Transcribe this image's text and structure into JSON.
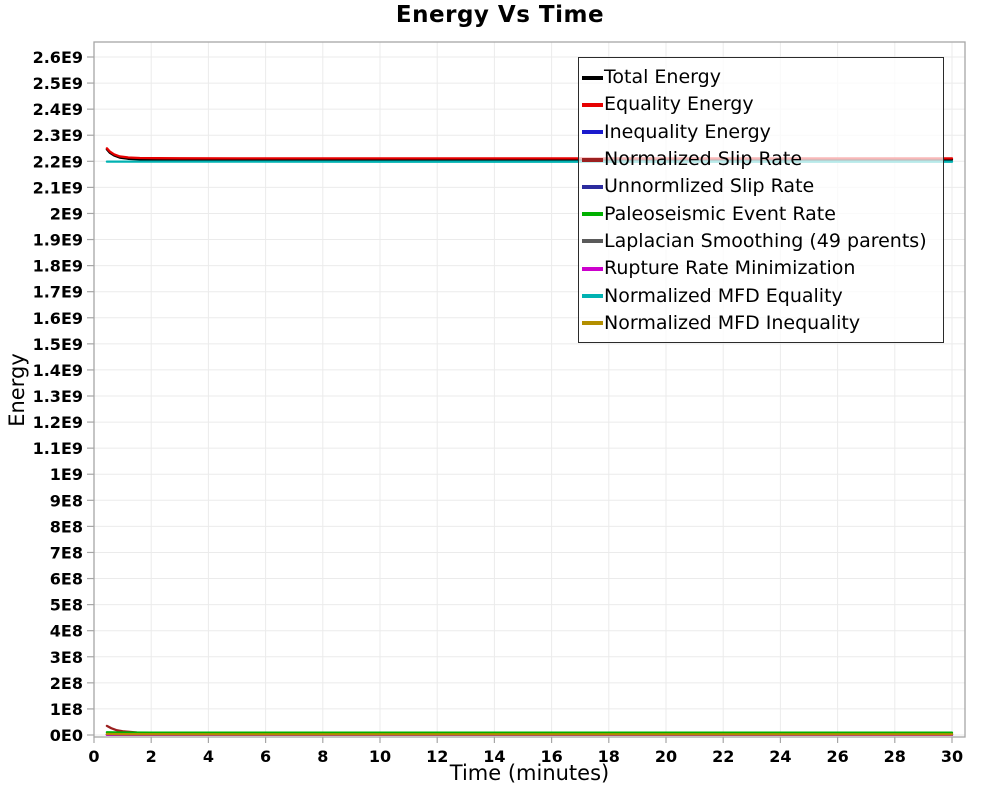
{
  "chart_data": {
    "type": "line",
    "title": "Energy Vs Time",
    "xlabel": "Time (minutes)",
    "ylabel": "Energy",
    "grid": "on",
    "legend_position": "top-right",
    "x_axis": {
      "min": 0,
      "max": 30.45,
      "ticks": [
        0,
        2,
        4,
        6,
        8,
        10,
        12,
        14,
        16,
        18,
        20,
        22,
        24,
        26,
        28,
        30
      ]
    },
    "y_axis": {
      "min": 0,
      "max": 2600000000,
      "tick_values": [
        0,
        100000000.0,
        200000000.0,
        300000000.0,
        400000000.0,
        500000000.0,
        600000000.0,
        700000000.0,
        800000000.0,
        900000000.0,
        1000000000.0,
        1100000000.0,
        1200000000.0,
        1300000000.0,
        1400000000.0,
        1500000000.0,
        1600000000.0,
        1700000000.0,
        1800000000.0,
        1900000000.0,
        2000000000.0,
        2100000000.0,
        2200000000.0,
        2300000000.0,
        2400000000.0,
        2500000000.0,
        2600000000.0
      ],
      "tick_labels": [
        "0E0",
        "1E8",
        "2E8",
        "3E8",
        "4E8",
        "5E8",
        "6E8",
        "7E8",
        "8E8",
        "9E8",
        "1E9",
        "1.1E9",
        "1.2E9",
        "1.3E9",
        "1.4E9",
        "1.5E9",
        "1.6E9",
        "1.7E9",
        "1.8E9",
        "1.9E9",
        "2E9",
        "2.1E9",
        "2.2E9",
        "2.3E9",
        "2.4E9",
        "2.5E9",
        "2.6E9"
      ]
    },
    "series": [
      {
        "name": "Total Energy",
        "color": "#000000",
        "points": [
          [
            0.45,
            2245500000.0
          ],
          [
            0.55,
            2233500000.0
          ],
          [
            0.7,
            2222500000.0
          ],
          [
            0.9,
            2214300000.0
          ],
          [
            1.2,
            2209800000.0
          ],
          [
            1.6,
            2207800000.0
          ],
          [
            2.2,
            2207000000.0
          ],
          [
            3,
            2206700000.0
          ],
          [
            5,
            2206500000.0
          ],
          [
            10,
            2206500000.0
          ],
          [
            20,
            2206500000.0
          ],
          [
            30,
            2206500000.0
          ]
        ]
      },
      {
        "name": "Equality Energy",
        "color": "#e60000",
        "points": [
          [
            0.45,
            2250000000.0
          ],
          [
            0.55,
            2238000000.0
          ],
          [
            0.7,
            2227000000.0
          ],
          [
            0.9,
            2219000000.0
          ],
          [
            1.2,
            2214600000.0
          ],
          [
            1.6,
            2212600000.0
          ],
          [
            2.2,
            2211800000.0
          ],
          [
            3,
            2211500000.0
          ],
          [
            5,
            2211300000.0
          ],
          [
            10,
            2211200000.0
          ],
          [
            20,
            2211200000.0
          ],
          [
            30,
            2211200000.0
          ]
        ]
      },
      {
        "name": "Inequality Energy",
        "color": "#1a1acd",
        "points": [
          [
            0.45,
            1500000.0
          ],
          [
            1,
            1000000.0
          ],
          [
            5,
            800000.0
          ],
          [
            30,
            800000.0
          ]
        ]
      },
      {
        "name": "Normalized Slip Rate",
        "color": "#9b2020",
        "points": [
          [
            0.45,
            35000000.0
          ],
          [
            0.6,
            26000000.0
          ],
          [
            0.8,
            18000000.0
          ],
          [
            1,
            14000000.0
          ],
          [
            1.5,
            9500000.0
          ],
          [
            2,
            7600000.0
          ],
          [
            3,
            6300000.0
          ],
          [
            5,
            5700000.0
          ],
          [
            10,
            5500000.0
          ],
          [
            20,
            5500000.0
          ],
          [
            30,
            5500000.0
          ]
        ]
      },
      {
        "name": "Unnormlized Slip Rate",
        "color": "#2b2b9e",
        "points": [
          [
            0.45,
            600000.0
          ],
          [
            30,
            500000.0
          ]
        ]
      },
      {
        "name": "Paleoseismic Event Rate",
        "color": "#00b000",
        "points": [
          [
            0.45,
            10500000.0
          ],
          [
            1,
            9500000.0
          ],
          [
            2,
            9200000.0
          ],
          [
            5,
            9000000.0
          ],
          [
            30,
            9000000.0
          ]
        ]
      },
      {
        "name": "Laplacian Smoothing (49 parents)",
        "color": "#5a5a5a",
        "points": [
          [
            0.45,
            2000000.0
          ],
          [
            1,
            1500000.0
          ],
          [
            5,
            1300000.0
          ],
          [
            30,
            1300000.0
          ]
        ]
      },
      {
        "name": "Rupture Rate Minimization",
        "color": "#cc00cc",
        "points": [
          [
            0.45,
            1000000.0
          ],
          [
            30,
            900000.0
          ]
        ]
      },
      {
        "name": "Normalized MFD Equality",
        "color": "#00b2b2",
        "points": [
          [
            0.45,
            2198800000.0
          ],
          [
            10,
            2198500000.0
          ],
          [
            30,
            2198500000.0
          ]
        ]
      },
      {
        "name": "Normalized MFD Inequality",
        "color": "#b38f00",
        "points": [
          [
            0.45,
            3800000.0
          ],
          [
            1,
            3000000.0
          ],
          [
            5,
            2600000.0
          ],
          [
            30,
            2600000.0
          ]
        ]
      }
    ]
  },
  "style_colors": {
    "grid": "#ebebeb",
    "frame": "#a6a6a6",
    "tick_mark": "#a6a6a6",
    "text": "#000000",
    "legend_border": "#2b2b2b"
  }
}
